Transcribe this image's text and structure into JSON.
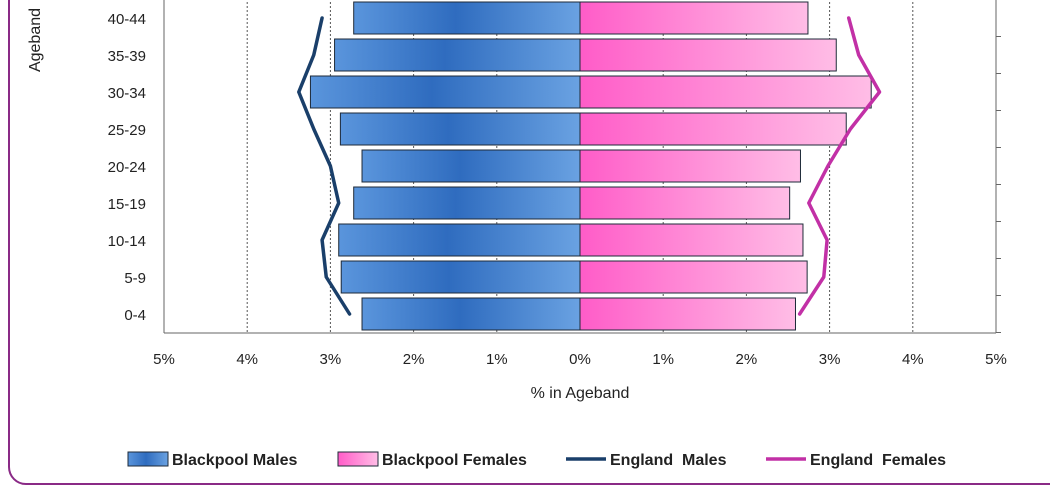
{
  "chart_data": {
    "type": "bar",
    "orientation": "horizontal",
    "title": "",
    "xlabel": "% in Ageband",
    "ylabel": "Ageband",
    "xlim": [
      -5,
      5
    ],
    "x_ticks": [
      -5,
      -4,
      -3,
      -2,
      -1,
      0,
      1,
      2,
      3,
      4,
      5
    ],
    "x_tick_labels": [
      "5%",
      "4%",
      "3%",
      "2%",
      "1%",
      "0%",
      "1%",
      "2%",
      "3%",
      "4%",
      "5%"
    ],
    "categories": [
      "0-4",
      "5-9",
      "10-14",
      "15-19",
      "20-24",
      "25-29",
      "30-34",
      "35-39",
      "40-44"
    ],
    "grid": "vertical dotted at 1% intervals",
    "legend_position": "bottom",
    "series": [
      {
        "name": "Blackpool Males",
        "kind": "bar",
        "side": "left",
        "color": "#3a78c8",
        "values": [
          2.62,
          2.87,
          2.9,
          2.72,
          2.62,
          2.88,
          3.24,
          2.95,
          2.72
        ]
      },
      {
        "name": "Blackpool Females",
        "kind": "bar",
        "side": "right",
        "color": "#ff7fcf",
        "values": [
          2.59,
          2.73,
          2.68,
          2.52,
          2.65,
          3.2,
          3.5,
          3.08,
          2.74
        ]
      },
      {
        "name": "England  Males",
        "kind": "line",
        "side": "left",
        "color": "#1a3f6a",
        "values": [
          2.77,
          3.05,
          3.1,
          2.9,
          3.0,
          3.2,
          3.38,
          3.2,
          3.1
        ]
      },
      {
        "name": "England  Females",
        "kind": "line",
        "side": "right",
        "color": "#c230a6",
        "values": [
          2.64,
          2.93,
          2.97,
          2.75,
          2.98,
          3.25,
          3.6,
          3.35,
          3.23
        ]
      }
    ]
  }
}
